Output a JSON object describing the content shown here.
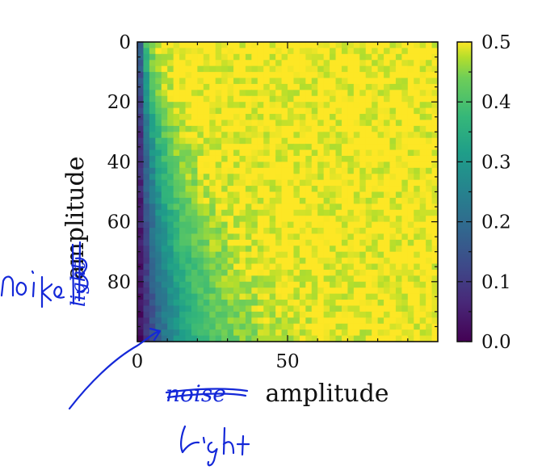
{
  "chart_data": {
    "type": "heatmap",
    "title": "",
    "xlabel": "amplitude",
    "ylabel": "amplitude",
    "x_range": [
      0,
      99
    ],
    "y_range": [
      0,
      99
    ],
    "y_inverted": true,
    "x_ticks": [
      0,
      50
    ],
    "y_ticks": [
      0,
      20,
      40,
      60,
      80
    ],
    "colorbar": {
      "colormap": "viridis",
      "range": [
        0.0,
        0.5
      ],
      "ticks": [
        0.0,
        0.1,
        0.2,
        0.3,
        0.4,
        0.5
      ]
    },
    "description_values": {
      "max_value": 0.5,
      "low_region": "left edge (x near 0), strongest at large y"
    },
    "grid": false
  },
  "annotations": {
    "x_struck_word": "noise",
    "x_handwritten_word": "light",
    "y_struck_word": "light",
    "y_handwritten_word": "noise",
    "ink_color": "#1428d8"
  }
}
